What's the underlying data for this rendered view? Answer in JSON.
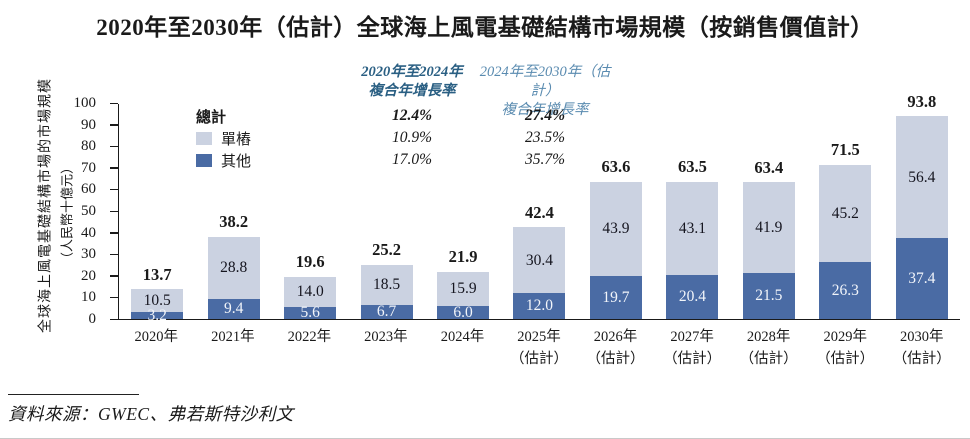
{
  "title": "2020年至2030年（估計）全球海上風電基礎結構市場規模（按銷售價值計）",
  "y_axis": {
    "title_line1": "全球海上風電基礎結構市場的市場規模",
    "title_line2": "（人民幣十億元）",
    "ticks": [
      0,
      10,
      20,
      30,
      40,
      50,
      60,
      70,
      80,
      90,
      100
    ]
  },
  "legend": {
    "total_label": "總計",
    "items": [
      {
        "label": "單樁",
        "color": "#cbd2e1"
      },
      {
        "label": "其他",
        "color": "#4a6ba4"
      }
    ]
  },
  "cagr": {
    "columns": [
      {
        "header_line1": "2020年至2024年",
        "header_line2": "複合年增長率",
        "color": "#2a5f83",
        "values": [
          "12.4%",
          "10.9%",
          "17.0%"
        ]
      },
      {
        "header_line1": "2024年至2030年（估計）",
        "header_line2": "複合年增長率",
        "color": "#5a8bb0",
        "values": [
          "27.4%",
          "23.5%",
          "35.7%"
        ]
      }
    ]
  },
  "chart_data": {
    "type": "bar",
    "stacked": true,
    "title": "2020年至2030年（估計）全球海上風電基礎結構市場規模（按銷售價值計）",
    "ylabel": "全球海上風電基礎結構市場的市場規模（人民幣十億元）",
    "ylim": [
      0,
      100
    ],
    "grid": false,
    "legend_position": "upper-left",
    "categories": [
      "2020年",
      "2021年",
      "2022年",
      "2023年",
      "2024年",
      "2025年",
      "2026年",
      "2027年",
      "2028年",
      "2029年",
      "2030年"
    ],
    "category_sublabels": [
      "",
      "",
      "",
      "",
      "",
      "（估計）",
      "（估計）",
      "（估計）",
      "（估計）",
      "（估計）",
      "（估計）"
    ],
    "series": [
      {
        "name": "單樁",
        "color": "#cbd2e1",
        "values": [
          10.5,
          28.8,
          14.0,
          18.5,
          15.9,
          30.4,
          43.9,
          43.1,
          41.9,
          45.2,
          56.4
        ]
      },
      {
        "name": "其他",
        "color": "#4a6ba4",
        "values": [
          3.2,
          9.4,
          5.6,
          6.7,
          6.0,
          12.0,
          19.7,
          20.4,
          21.5,
          26.3,
          37.4
        ]
      }
    ],
    "totals": [
      13.7,
      38.2,
      19.6,
      25.2,
      21.9,
      42.4,
      63.6,
      63.5,
      63.4,
      71.5,
      93.8
    ],
    "cagr_2020_2024": {
      "總計": "12.4%",
      "單樁": "10.9%",
      "其他": "17.0%"
    },
    "cagr_2024_2030": {
      "總計": "27.4%",
      "單樁": "23.5%",
      "其他": "35.7%"
    }
  },
  "source": {
    "text": "資料來源：GWEC、弗若斯特沙利文"
  }
}
